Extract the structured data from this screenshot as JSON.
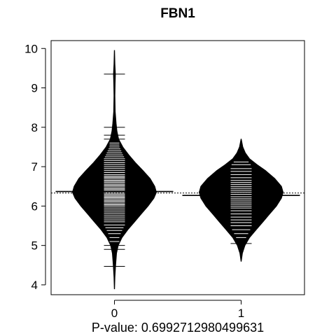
{
  "chart_data": {
    "type": "beanplot",
    "title": "FBN1",
    "xlabel": "P-value: 0.6992712980499631",
    "ylabel": "",
    "categories": [
      "0",
      "1"
    ],
    "y_ticks": [
      "4",
      "5",
      "6",
      "7",
      "8",
      "9",
      "10"
    ],
    "ylim": [
      3.75,
      10.2
    ],
    "overall_mean": 6.33,
    "colors": {
      "bean_fill": "#000000",
      "bean_lines": "#ffffff",
      "axis": "#000000"
    },
    "groups": [
      {
        "name": "0",
        "mean": 6.37,
        "min": 3.9,
        "max": 9.95,
        "density": [
          [
            3.9,
            0.004
          ],
          [
            4.2,
            0.012
          ],
          [
            4.5,
            0.028
          ],
          [
            4.8,
            0.05
          ],
          [
            5.0,
            0.09
          ],
          [
            5.2,
            0.18
          ],
          [
            5.4,
            0.32
          ],
          [
            5.6,
            0.48
          ],
          [
            5.8,
            0.64
          ],
          [
            6.0,
            0.8
          ],
          [
            6.2,
            0.94
          ],
          [
            6.35,
            1.0
          ],
          [
            6.5,
            0.96
          ],
          [
            6.7,
            0.85
          ],
          [
            6.9,
            0.68
          ],
          [
            7.1,
            0.5
          ],
          [
            7.3,
            0.34
          ],
          [
            7.5,
            0.2
          ],
          [
            7.7,
            0.1
          ],
          [
            7.9,
            0.06
          ],
          [
            8.1,
            0.04
          ],
          [
            8.4,
            0.018
          ],
          [
            8.8,
            0.012
          ],
          [
            9.1,
            0.016
          ],
          [
            9.35,
            0.024
          ],
          [
            9.6,
            0.012
          ],
          [
            9.95,
            0.004
          ]
        ],
        "observations": [
          4.47,
          4.9,
          5.0,
          5.1,
          5.2,
          5.3,
          5.38,
          5.45,
          5.52,
          5.6,
          5.65,
          5.7,
          5.75,
          5.8,
          5.85,
          5.9,
          5.95,
          6.0,
          6.03,
          6.06,
          6.1,
          6.13,
          6.16,
          6.2,
          6.22,
          6.25,
          6.28,
          6.31,
          6.34,
          6.37,
          6.4,
          6.43,
          6.46,
          6.5,
          6.53,
          6.56,
          6.6,
          6.63,
          6.66,
          6.7,
          6.73,
          6.76,
          6.8,
          6.85,
          6.9,
          6.95,
          7.0,
          7.05,
          7.1,
          7.15,
          7.2,
          7.25,
          7.3,
          7.35,
          7.4,
          7.45,
          7.5,
          7.55,
          7.6,
          7.7,
          7.8,
          8.0,
          9.35
        ]
      },
      {
        "name": "1",
        "mean": 6.27,
        "min": 4.6,
        "max": 7.7,
        "density": [
          [
            4.6,
            0.004
          ],
          [
            4.8,
            0.03
          ],
          [
            5.0,
            0.09
          ],
          [
            5.2,
            0.2
          ],
          [
            5.4,
            0.36
          ],
          [
            5.6,
            0.52
          ],
          [
            5.8,
            0.68
          ],
          [
            6.0,
            0.84
          ],
          [
            6.2,
            0.96
          ],
          [
            6.35,
            1.0
          ],
          [
            6.5,
            0.96
          ],
          [
            6.7,
            0.8
          ],
          [
            6.9,
            0.58
          ],
          [
            7.05,
            0.38
          ],
          [
            7.2,
            0.2
          ],
          [
            7.35,
            0.1
          ],
          [
            7.5,
            0.04
          ],
          [
            7.7,
            0.004
          ]
        ],
        "observations": [
          5.05,
          5.2,
          5.3,
          5.4,
          5.5,
          5.58,
          5.65,
          5.72,
          5.8,
          5.88,
          5.95,
          6.0,
          6.05,
          6.1,
          6.15,
          6.2,
          6.25,
          6.3,
          6.35,
          6.4,
          6.45,
          6.5,
          6.55,
          6.6,
          6.65,
          6.72,
          6.8,
          6.88,
          6.95,
          7.05,
          7.12
        ]
      }
    ]
  }
}
